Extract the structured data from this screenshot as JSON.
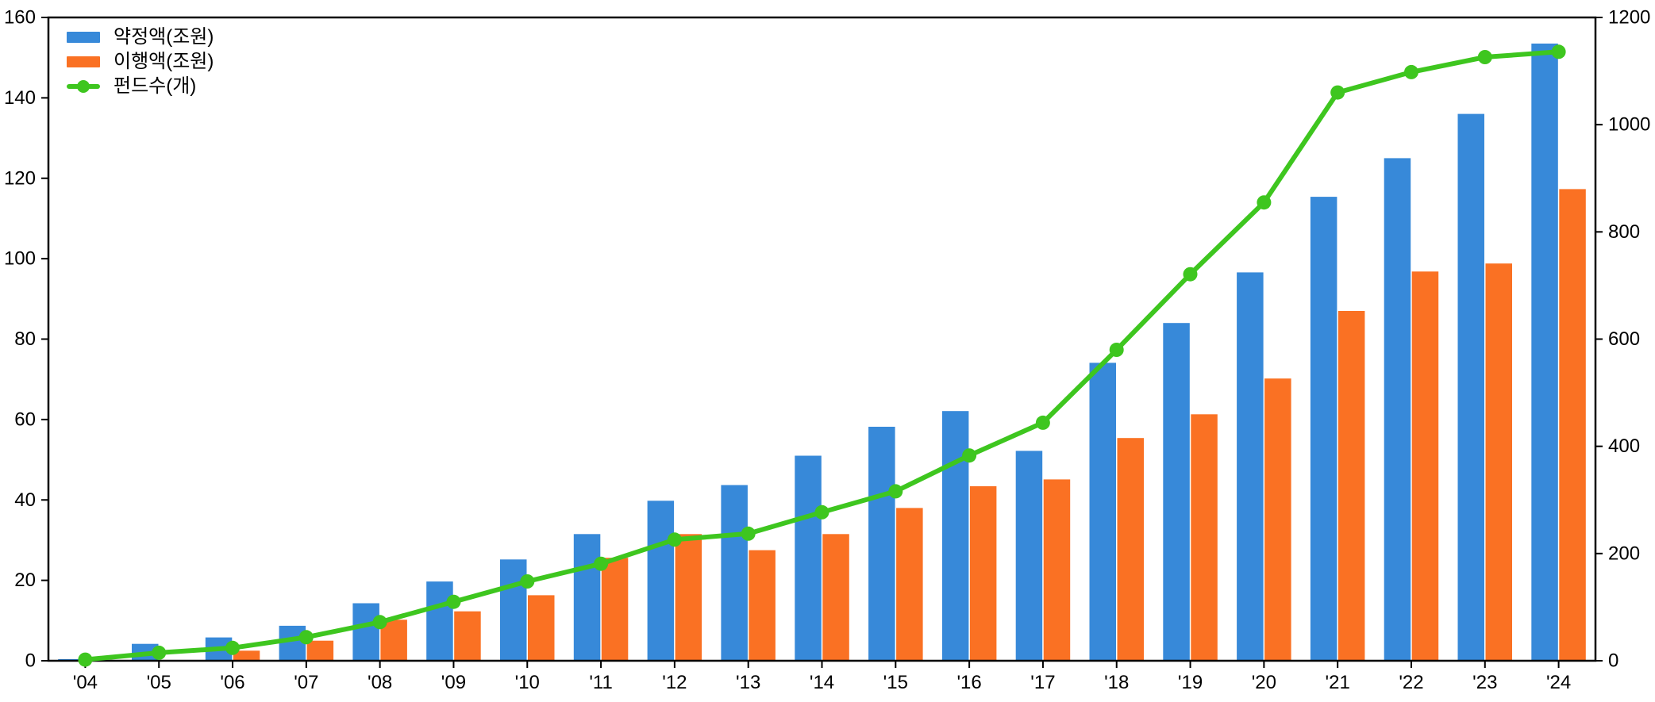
{
  "chart_data": {
    "type": "combo",
    "title": "",
    "categories": [
      "'04",
      "'05",
      "'06",
      "'07",
      "'08",
      "'09",
      "'10",
      "'11",
      "'12",
      "'13",
      "'14",
      "'15",
      "'16",
      "'17",
      "'18",
      "'19",
      "'20",
      "'21",
      "'22",
      "'23",
      "'24"
    ],
    "series": [
      {
        "name": "약정액(조원)",
        "type": "bar",
        "axis": "left",
        "color": "#3789d9",
        "values": [
          0.4,
          4.2,
          5.8,
          8.7,
          14.3,
          19.7,
          25.2,
          31.5,
          39.8,
          43.7,
          51.0,
          58.2,
          62.1,
          52.2,
          74.1,
          84.0,
          96.6,
          115.4,
          125.0,
          136.0,
          153.5
        ]
      },
      {
        "name": "이행액(조원)",
        "type": "bar",
        "axis": "left",
        "color": "#fa7123",
        "values": [
          0,
          0,
          2.5,
          5.0,
          10.2,
          12.3,
          16.3,
          25.6,
          31.5,
          27.5,
          31.5,
          38.0,
          43.4,
          45.1,
          55.4,
          61.3,
          70.2,
          87.0,
          96.8,
          98.8,
          117.3
        ]
      },
      {
        "name": "펀드수(개)",
        "type": "line",
        "axis": "right",
        "color": "#3ec61f",
        "values": [
          2,
          15,
          24,
          44,
          72,
          110,
          148,
          181,
          226,
          237,
          277,
          316,
          383,
          444,
          580,
          721,
          855,
          1060,
          1098,
          1126,
          1136
        ]
      }
    ],
    "left_axis": {
      "min": 0,
      "max": 160,
      "ticks": [
        "0",
        "20",
        "40",
        "60",
        "80",
        "100",
        "120",
        "140",
        "160"
      ]
    },
    "right_axis": {
      "min": 0,
      "max": 1200,
      "ticks": [
        "0",
        "200",
        "400",
        "600",
        "800",
        "1000",
        "1200"
      ]
    },
    "xlabel": "",
    "ylabel": "",
    "grid": false,
    "legend_position": "top-left",
    "background": "#ffffff",
    "spine_color": "#000000"
  }
}
